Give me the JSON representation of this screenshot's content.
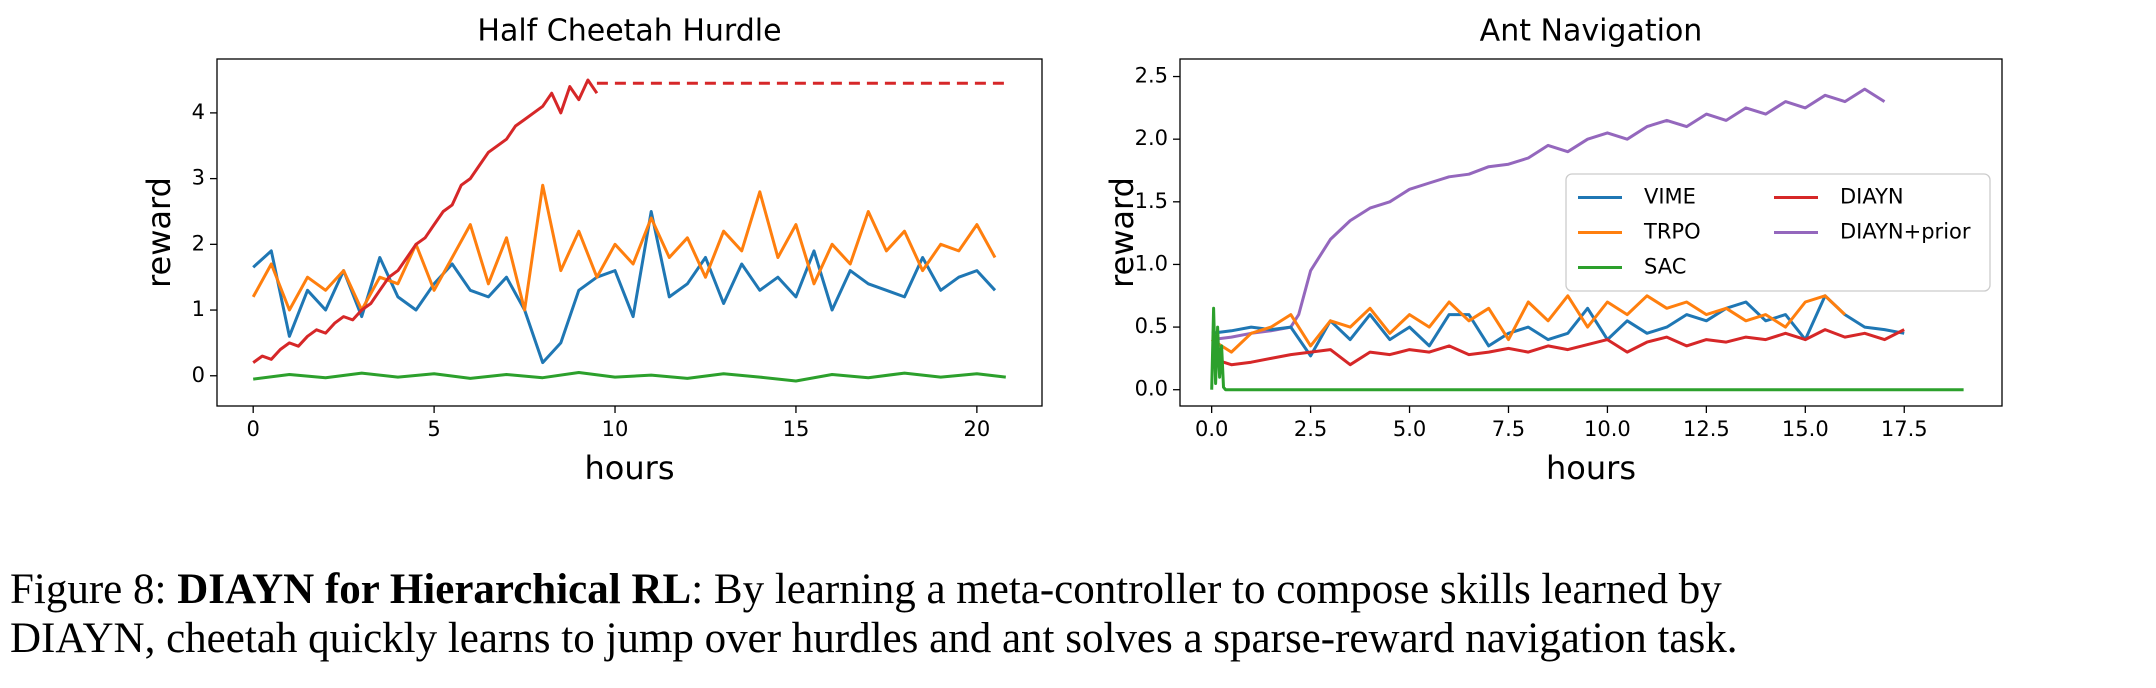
{
  "chart_data": [
    {
      "type": "line",
      "title": "Half Cheetah Hurdle",
      "xlabel": "hours",
      "ylabel": "reward",
      "xlim": [
        -1,
        21.8
      ],
      "ylim": [
        -0.46,
        4.82
      ],
      "xticks": [
        0,
        5,
        10,
        15,
        20
      ],
      "yticks": [
        0,
        1,
        2,
        3,
        4
      ],
      "grid": false,
      "series": [
        {
          "name": "VIME",
          "color": "#1f77b4",
          "x": [
            0,
            0.5,
            1,
            1.5,
            2,
            2.5,
            3,
            3.5,
            4,
            4.5,
            5,
            5.5,
            6,
            6.5,
            7,
            7.5,
            8,
            8.5,
            9,
            9.5,
            10,
            10.5,
            11,
            11.5,
            12,
            12.5,
            13,
            13.5,
            14,
            14.5,
            15,
            15.5,
            16,
            16.5,
            17,
            17.5,
            18,
            18.5,
            19,
            19.5,
            20,
            20.5
          ],
          "values": [
            1.65,
            1.9,
            0.6,
            1.3,
            1.0,
            1.6,
            0.9,
            1.8,
            1.2,
            1.0,
            1.4,
            1.7,
            1.3,
            1.2,
            1.5,
            1.0,
            0.2,
            0.5,
            1.3,
            1.5,
            1.6,
            0.9,
            2.5,
            1.2,
            1.4,
            1.8,
            1.1,
            1.7,
            1.3,
            1.5,
            1.2,
            1.9,
            1.0,
            1.6,
            1.4,
            1.3,
            1.2,
            1.8,
            1.3,
            1.5,
            1.6,
            1.3
          ]
        },
        {
          "name": "TRPO",
          "color": "#ff7f0e",
          "x": [
            0,
            0.5,
            1,
            1.5,
            2,
            2.5,
            3,
            3.5,
            4,
            4.5,
            5,
            5.5,
            6,
            6.5,
            7,
            7.5,
            8,
            8.5,
            9,
            9.5,
            10,
            10.5,
            11,
            11.5,
            12,
            12.5,
            13,
            13.5,
            14,
            14.5,
            15,
            15.5,
            16,
            16.5,
            17,
            17.5,
            18,
            18.5,
            19,
            19.5,
            20,
            20.5
          ],
          "values": [
            1.2,
            1.7,
            1.0,
            1.5,
            1.3,
            1.6,
            1.0,
            1.5,
            1.4,
            2.0,
            1.3,
            1.8,
            2.3,
            1.4,
            2.1,
            1.0,
            2.9,
            1.6,
            2.2,
            1.5,
            2.0,
            1.7,
            2.4,
            1.8,
            2.1,
            1.5,
            2.2,
            1.9,
            2.8,
            1.8,
            2.3,
            1.4,
            2.0,
            1.7,
            2.5,
            1.9,
            2.2,
            1.6,
            2.0,
            1.9,
            2.3,
            1.8
          ]
        },
        {
          "name": "SAC",
          "color": "#2ca02c",
          "x": [
            0,
            1,
            2,
            3,
            4,
            5,
            6,
            7,
            8,
            9,
            10,
            11,
            12,
            13,
            14,
            15,
            16,
            17,
            18,
            19,
            20,
            20.8
          ],
          "values": [
            -0.05,
            0.02,
            -0.03,
            0.04,
            -0.02,
            0.03,
            -0.04,
            0.02,
            -0.03,
            0.05,
            -0.02,
            0.01,
            -0.04,
            0.03,
            -0.02,
            -0.08,
            0.02,
            -0.03,
            0.04,
            -0.02,
            0.03,
            -0.02
          ]
        },
        {
          "name": "DIAYN",
          "color": "#d62728",
          "x": [
            0,
            0.25,
            0.5,
            0.75,
            1,
            1.25,
            1.5,
            1.75,
            2,
            2.25,
            2.5,
            2.75,
            3,
            3.25,
            3.5,
            3.75,
            4,
            4.25,
            4.5,
            4.75,
            5,
            5.25,
            5.5,
            5.75,
            6,
            6.25,
            6.5,
            6.75,
            7,
            7.25,
            7.5,
            7.75,
            8,
            8.25,
            8.5,
            8.75,
            9,
            9.25,
            9.5
          ],
          "values": [
            0.2,
            0.3,
            0.25,
            0.4,
            0.5,
            0.45,
            0.6,
            0.7,
            0.65,
            0.8,
            0.9,
            0.85,
            1.0,
            1.1,
            1.3,
            1.5,
            1.6,
            1.8,
            2.0,
            2.1,
            2.3,
            2.5,
            2.6,
            2.9,
            3.0,
            3.2,
            3.4,
            3.5,
            3.6,
            3.8,
            3.9,
            4.0,
            4.1,
            4.3,
            4.0,
            4.4,
            4.2,
            4.5,
            4.3
          ]
        },
        {
          "color": "#d62728",
          "style": "dashed",
          "x": [
            9.5,
            20.8
          ],
          "values": [
            4.45,
            4.45
          ]
        }
      ]
    },
    {
      "type": "line",
      "title": "Ant Navigation",
      "xlabel": "hours",
      "ylabel": "reward",
      "xlim": [
        -0.8,
        19.97
      ],
      "ylim": [
        -0.13,
        2.64
      ],
      "xticks": [
        {
          "value": 0,
          "label": "0.0"
        },
        {
          "value": 2.5,
          "label": "2.5"
        },
        {
          "value": 5,
          "label": "5.0"
        },
        {
          "value": 7.5,
          "label": "7.5"
        },
        {
          "value": 10,
          "label": "10.0"
        },
        {
          "value": 12.5,
          "label": "12.5"
        },
        {
          "value": 15,
          "label": "15.0"
        },
        {
          "value": 17.5,
          "label": "17.5"
        }
      ],
      "yticks": [
        {
          "value": 0,
          "label": "0.0"
        },
        {
          "value": 0.5,
          "label": "0.5"
        },
        {
          "value": 1,
          "label": "1.0"
        },
        {
          "value": 1.5,
          "label": "1.5"
        },
        {
          "value": 2,
          "label": "2.0"
        },
        {
          "value": 2.5,
          "label": "2.5"
        }
      ],
      "grid": false,
      "legend": {
        "loc": "center right",
        "ncol": 2
      },
      "series": [
        {
          "name": "VIME",
          "color": "#1f77b4",
          "x": [
            0,
            0.5,
            1,
            1.5,
            2,
            2.5,
            3,
            3.5,
            4,
            4.5,
            5,
            5.5,
            6,
            6.5,
            7,
            7.5,
            8,
            8.5,
            9,
            9.5,
            10,
            10.5,
            11,
            11.5,
            12,
            12.5,
            13,
            13.5,
            14,
            14.5,
            15,
            15.5,
            16,
            16.5,
            17,
            17.5
          ],
          "values": [
            0.45,
            0.47,
            0.5,
            0.48,
            0.5,
            0.27,
            0.55,
            0.4,
            0.6,
            0.4,
            0.5,
            0.35,
            0.6,
            0.6,
            0.35,
            0.45,
            0.5,
            0.4,
            0.45,
            0.65,
            0.4,
            0.55,
            0.45,
            0.5,
            0.6,
            0.55,
            0.65,
            0.7,
            0.55,
            0.6,
            0.4,
            0.75,
            0.6,
            0.5,
            0.48,
            0.45
          ]
        },
        {
          "name": "TRPO",
          "color": "#ff7f0e",
          "x": [
            0,
            0.5,
            1,
            1.5,
            2,
            2.5,
            3,
            3.5,
            4,
            4.5,
            5,
            5.5,
            6,
            6.5,
            7,
            7.5,
            8,
            8.5,
            9,
            9.5,
            10,
            10.5,
            11,
            11.5,
            12,
            12.5,
            13,
            13.5,
            14,
            14.5,
            15,
            15.5,
            16
          ],
          "values": [
            0.4,
            0.3,
            0.45,
            0.5,
            0.6,
            0.35,
            0.55,
            0.5,
            0.65,
            0.45,
            0.6,
            0.5,
            0.7,
            0.55,
            0.65,
            0.4,
            0.7,
            0.55,
            0.75,
            0.5,
            0.7,
            0.6,
            0.75,
            0.65,
            0.7,
            0.6,
            0.65,
            0.55,
            0.6,
            0.5,
            0.7,
            0.75,
            0.6
          ]
        },
        {
          "name": "SAC",
          "color": "#2ca02c",
          "x": [
            0,
            0.05,
            0.1,
            0.15,
            0.2,
            0.25,
            0.3,
            0.35,
            19
          ],
          "values": [
            0,
            0.65,
            0.05,
            0.5,
            0.1,
            0.35,
            0.02,
            0,
            0
          ]
        },
        {
          "name": "DIAYN",
          "color": "#d62728",
          "x": [
            0,
            0.5,
            1,
            1.5,
            2,
            2.5,
            3,
            3.5,
            4,
            4.5,
            5,
            5.5,
            6,
            6.5,
            7,
            7.5,
            8,
            8.5,
            9,
            9.5,
            10,
            10.5,
            11,
            11.5,
            12,
            12.5,
            13,
            13.5,
            14,
            14.5,
            15,
            15.5,
            16,
            16.5,
            17,
            17.5
          ],
          "values": [
            0.25,
            0.2,
            0.22,
            0.25,
            0.28,
            0.3,
            0.32,
            0.2,
            0.3,
            0.28,
            0.32,
            0.3,
            0.35,
            0.28,
            0.3,
            0.33,
            0.3,
            0.35,
            0.32,
            0.36,
            0.4,
            0.3,
            0.38,
            0.42,
            0.35,
            0.4,
            0.38,
            0.42,
            0.4,
            0.45,
            0.4,
            0.48,
            0.42,
            0.45,
            0.4,
            0.48
          ]
        },
        {
          "name": "DIAYN+prior",
          "color": "#9467bd",
          "x": [
            0,
            0.5,
            1,
            1.5,
            2,
            2.2,
            2.5,
            3,
            3.5,
            4,
            4.5,
            5,
            5.5,
            6,
            6.5,
            7,
            7.5,
            8,
            8.5,
            9,
            9.5,
            10,
            10.5,
            11,
            11.5,
            12,
            12.5,
            13,
            13.5,
            14,
            14.5,
            15,
            15.5,
            16,
            16.5,
            17
          ],
          "values": [
            0.4,
            0.42,
            0.45,
            0.47,
            0.5,
            0.6,
            0.95,
            1.2,
            1.35,
            1.45,
            1.5,
            1.6,
            1.65,
            1.7,
            1.72,
            1.78,
            1.8,
            1.85,
            1.95,
            1.9,
            2.0,
            2.05,
            2.0,
            2.1,
            2.15,
            2.1,
            2.2,
            2.15,
            2.25,
            2.2,
            2.3,
            2.25,
            2.35,
            2.3,
            2.4,
            2.3
          ]
        }
      ]
    }
  ],
  "caption": {
    "label": "Figure 8:",
    "bold": "DIAYN for Hierarchical RL",
    "text": ": By learning a meta-controller to compose skills learned by",
    "line2": "DIAYN, cheetah quickly learns to jump over hurdles and ant solves a sparse-reward navigation task."
  }
}
